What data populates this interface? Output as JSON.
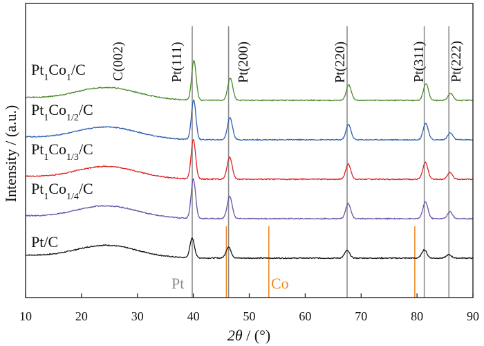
{
  "chart_data": {
    "type": "line",
    "title": "",
    "xlabel_parts": {
      "italic": "2θ",
      "rest": " / (°)"
    },
    "ylabel": "Intensity / (a.u.)",
    "xlim": [
      10,
      90
    ],
    "xticks": [
      10,
      20,
      30,
      40,
      50,
      60,
      70,
      80,
      90
    ],
    "grid": false,
    "series": [
      {
        "name": "Pt1Co1/C",
        "label_parts": [
          [
            "Pt",
            ""
          ],
          [
            "1",
            "sub"
          ],
          [
            "Co",
            ""
          ],
          [
            "1",
            "sub"
          ],
          [
            "/C",
            ""
          ]
        ],
        "color": "#4a8a2a",
        "offset": 4,
        "peak_scale": 1.0,
        "peak_shift": 0.3
      },
      {
        "name": "Pt1Co1/2/C",
        "label_parts": [
          [
            "Pt",
            ""
          ],
          [
            "1",
            "sub"
          ],
          [
            "Co",
            ""
          ],
          [
            "1/2",
            "sub"
          ],
          [
            "/C",
            ""
          ]
        ],
        "color": "#2f5fb0",
        "offset": 3,
        "peak_scale": 1.0,
        "peak_shift": 0.25
      },
      {
        "name": "Pt1Co1/3/C",
        "label_parts": [
          [
            "Pt",
            ""
          ],
          [
            "1",
            "sub"
          ],
          [
            "Co",
            ""
          ],
          [
            "1/3",
            "sub"
          ],
          [
            "/C",
            ""
          ]
        ],
        "color": "#e02020",
        "offset": 2,
        "peak_scale": 1.0,
        "peak_shift": 0.2
      },
      {
        "name": "Pt1Co1/4/C",
        "label_parts": [
          [
            "Pt",
            ""
          ],
          [
            "1",
            "sub"
          ],
          [
            "Co",
            ""
          ],
          [
            "1/4",
            "sub"
          ],
          [
            "/C",
            ""
          ]
        ],
        "color": "#6a4fa8",
        "offset": 1,
        "peak_scale": 1.0,
        "peak_shift": 0.2
      },
      {
        "name": "Pt/C",
        "label_parts": [
          [
            "Pt/C",
            ""
          ]
        ],
        "color": "#111111",
        "offset": 0,
        "peak_scale": 0.5,
        "peak_shift": 0.0
      }
    ],
    "peaks": [
      {
        "label": "C(002)",
        "x": 24.5
      },
      {
        "label": "Pt(111)",
        "x": 39.8
      },
      {
        "label": "Pt(200)",
        "x": 46.3
      },
      {
        "label": "Pt(220)",
        "x": 67.5
      },
      {
        "label": "Pt(311)",
        "x": 81.3
      },
      {
        "label": "Pt(222)",
        "x": 85.7
      }
    ],
    "reference_lines": {
      "Pt": {
        "label": "Pt",
        "color": "#8c8c8c",
        "positions": [
          39.8,
          46.3,
          67.5,
          81.3,
          85.7
        ]
      },
      "Co": {
        "label": "Co",
        "color": "#f08a24",
        "positions": [
          45.9,
          53.5,
          79.6
        ]
      }
    }
  }
}
